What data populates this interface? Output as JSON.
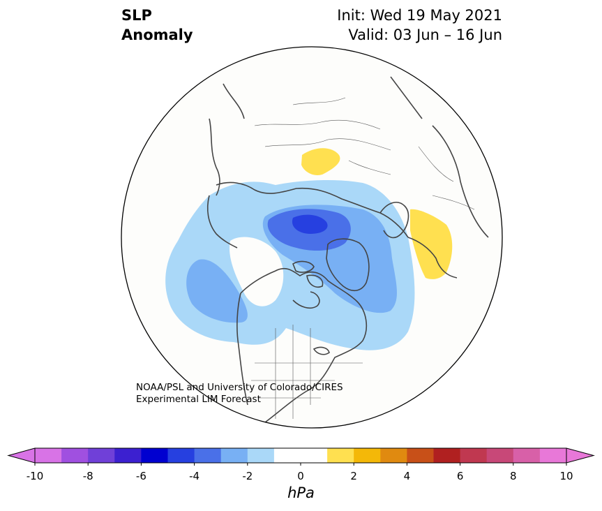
{
  "title": {
    "left_line1": "SLP",
    "left_line2": "Anomaly",
    "right_line1": "Init: Wed 19 May 2021",
    "right_line2": "Valid: 03 Jun – 16 Jun"
  },
  "credit": {
    "line1": "NOAA/PSL and University of Colorado/CIRES",
    "line2": "Experimental LIM Forecast"
  },
  "colorbar": {
    "unit_label": "hPa",
    "ticks": [
      "-10",
      "-8",
      "-6",
      "-4",
      "-2",
      "0",
      "2",
      "4",
      "6",
      "8",
      "10"
    ],
    "extend": "both",
    "colors": [
      "#d873e6",
      "#a050e0",
      "#7040d8",
      "#3c20d0",
      "#0000d0",
      "#2640e0",
      "#4a70e8",
      "#78b0f4",
      "#aad8f8",
      "#ffffff",
      "#ffffff",
      "#ffe050",
      "#f4b808",
      "#e08a10",
      "#c85018",
      "#b02020",
      "#c03850",
      "#c84878",
      "#d860a8",
      "#e878d8"
    ]
  },
  "map": {
    "projection": "north-polar-stereographic",
    "anomalies": [
      {
        "name": "negative-anomaly-north-atlantic-arctic",
        "min_hpa": -6,
        "levels": [
          -2,
          -4,
          -6
        ]
      },
      {
        "name": "negative-anomaly-north-pacific",
        "min_hpa": -3,
        "levels": [
          -2,
          -3
        ]
      },
      {
        "name": "positive-anomaly-siberia",
        "max_hpa": 1,
        "levels": [
          1
        ]
      },
      {
        "name": "positive-anomaly-eastern-europe",
        "max_hpa": 1,
        "levels": [
          1
        ]
      }
    ]
  }
}
